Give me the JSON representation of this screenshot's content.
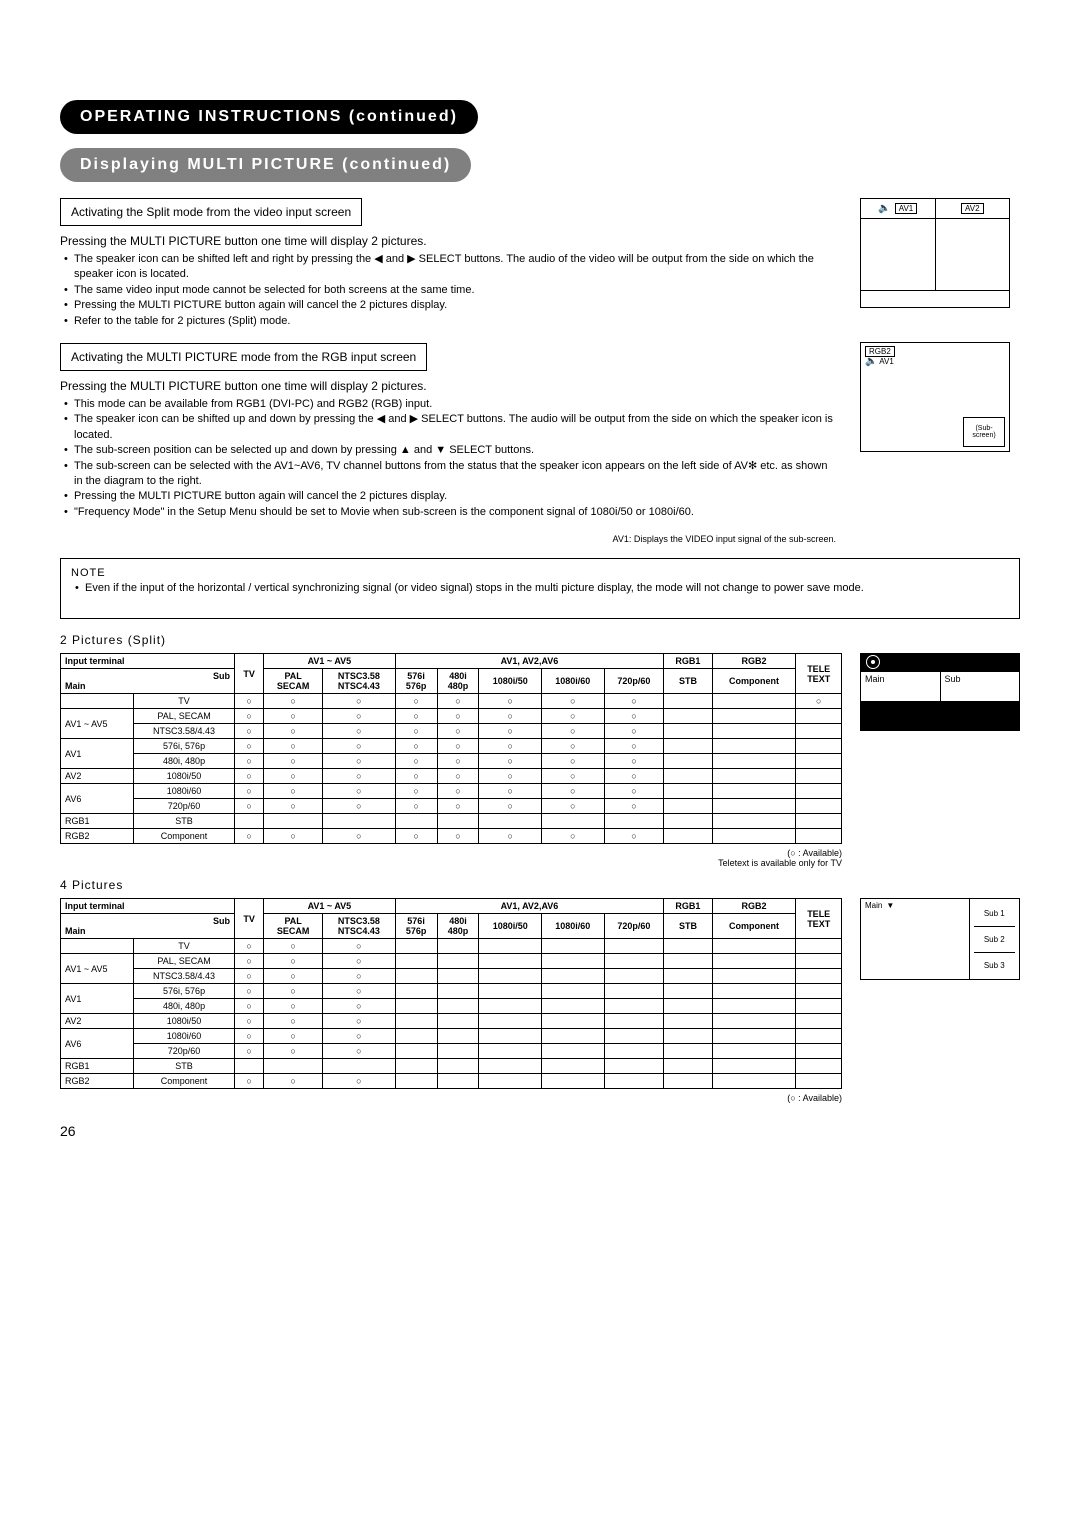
{
  "page_number": "26",
  "header": {
    "pill_black": "OPERATING INSTRUCTIONS (continued)",
    "pill_gray": "Displaying MULTI PICTURE (continued)"
  },
  "section1": {
    "box_title": "Activating the Split mode from the video input screen",
    "intro": "Pressing the MULTI PICTURE button one time will display 2 pictures.",
    "bullets": [
      "The speaker icon can be shifted left and right by pressing the ◀ and ▶ SELECT buttons. The audio of the video will be output from the side on which the speaker icon is located.",
      "The same video input mode cannot be selected for both screens at the same time.",
      "Pressing the MULTI PICTURE button again will cancel the 2 pictures display.",
      "Refer to the table for 2 pictures (Split) mode."
    ],
    "diagram": {
      "left_label": "AV1",
      "right_label": "AV2"
    }
  },
  "section2": {
    "box_title": "Activating the MULTI PICTURE mode from the RGB input screen",
    "intro": "Pressing the MULTI PICTURE button one time will display 2 pictures.",
    "bullets": [
      "This mode can be available from RGB1 (DVI-PC) and RGB2 (RGB) input.",
      "The speaker icon can be shifted up and down by pressing the ◀ and ▶ SELECT buttons. The audio will be output from the side on which the speaker icon is located.",
      "The sub-screen position can be selected up and down by pressing ▲ and ▼ SELECT buttons.",
      "The sub-screen can be selected with the AV1~AV6, TV channel buttons from the status that the speaker icon appears on the left side of AV✻ etc. as shown in the diagram to the right.",
      "Pressing the MULTI PICTURE button again will cancel the 2 pictures display.",
      "\"Frequency Mode\" in the Setup Menu should be set to Movie when sub-screen is the component signal of 1080i/50 or 1080i/60."
    ],
    "diagram": {
      "main_label": "RGB2",
      "av_label": "AV1",
      "sub_label": "(Sub-screen)"
    },
    "caption": "AV1: Displays the VIDEO input signal of the sub-screen."
  },
  "note": {
    "label": "NOTE",
    "text": "Even if the input of the horizontal / vertical synchronizing signal (or video signal) stops in the multi picture display, the mode will not change to power save mode."
  },
  "tables": {
    "title_split": "2 Pictures (Split)",
    "title_4pic": "4 Pictures",
    "legend_split_a": "(○ : Available)",
    "legend_split_b": "Teletext is available only for TV",
    "legend_4pic": "(○ : Available)",
    "input_terminal": "Input terminal",
    "sub_main": "Sub\nMain",
    "group_headers": [
      "AV1 ~ AV5",
      "AV1, AV2,AV6",
      "RGB1",
      "RGB2"
    ],
    "col_headers": [
      "TV",
      "PAL\nSECAM",
      "NTSC3.58\nNTSC4.43",
      "576i\n576p",
      "480i\n480p",
      "1080i/50",
      "1080i/60",
      "720p/60",
      "STB",
      "Component",
      "TELE\nTEXT"
    ],
    "side_labels_split": {
      "header_main": "Main",
      "header_sub": "Sub"
    },
    "rows_split": [
      {
        "g": "",
        "m": "TV",
        "c": [
          "○",
          "○",
          "○",
          "○",
          "○",
          "○",
          "○",
          "○",
          "",
          "",
          "○"
        ]
      },
      {
        "g": "AV1 ~ AV5",
        "m": "PAL, SECAM",
        "c": [
          "○",
          "○",
          "○",
          "○",
          "○",
          "○",
          "○",
          "○",
          "",
          "",
          ""
        ]
      },
      {
        "g": "",
        "m": "NTSC3.58/4.43",
        "c": [
          "○",
          "○",
          "○",
          "○",
          "○",
          "○",
          "○",
          "○",
          "",
          "",
          ""
        ]
      },
      {
        "g": "AV1",
        "m": "576i, 576p",
        "c": [
          "○",
          "○",
          "○",
          "○",
          "○",
          "○",
          "○",
          "○",
          "",
          "",
          ""
        ]
      },
      {
        "g": "",
        "m": "480i, 480p",
        "c": [
          "○",
          "○",
          "○",
          "○",
          "○",
          "○",
          "○",
          "○",
          "",
          "",
          ""
        ]
      },
      {
        "g": "AV2",
        "m": "1080i/50",
        "c": [
          "○",
          "○",
          "○",
          "○",
          "○",
          "○",
          "○",
          "○",
          "",
          "",
          ""
        ]
      },
      {
        "g": "AV6",
        "m": "1080i/60",
        "c": [
          "○",
          "○",
          "○",
          "○",
          "○",
          "○",
          "○",
          "○",
          "",
          "",
          ""
        ]
      },
      {
        "g": "",
        "m": "720p/60",
        "c": [
          "○",
          "○",
          "○",
          "○",
          "○",
          "○",
          "○",
          "○",
          "",
          "",
          ""
        ]
      },
      {
        "g": "RGB1",
        "m": "STB",
        "c": [
          "",
          "",
          "",
          "",
          "",
          "",
          "",
          "",
          "",
          "",
          ""
        ]
      },
      {
        "g": "RGB2",
        "m": "Component",
        "c": [
          "○",
          "○",
          "○",
          "○",
          "○",
          "○",
          "○",
          "○",
          "",
          "",
          ""
        ]
      }
    ],
    "rows_4pic": [
      {
        "g": "",
        "m": "TV",
        "c": [
          "○",
          "○",
          "○",
          "",
          "",
          "",
          "",
          "",
          "",
          "",
          ""
        ]
      },
      {
        "g": "AV1 ~ AV5",
        "m": "PAL, SECAM",
        "c": [
          "○",
          "○",
          "○",
          "",
          "",
          "",
          "",
          "",
          "",
          "",
          ""
        ]
      },
      {
        "g": "",
        "m": "NTSC3.58/4.43",
        "c": [
          "○",
          "○",
          "○",
          "",
          "",
          "",
          "",
          "",
          "",
          "",
          ""
        ]
      },
      {
        "g": "AV1",
        "m": "576i, 576p",
        "c": [
          "○",
          "○",
          "○",
          "",
          "",
          "",
          "",
          "",
          "",
          "",
          ""
        ]
      },
      {
        "g": "",
        "m": "480i, 480p",
        "c": [
          "○",
          "○",
          "○",
          "",
          "",
          "",
          "",
          "",
          "",
          "",
          ""
        ]
      },
      {
        "g": "AV2",
        "m": "1080i/50",
        "c": [
          "○",
          "○",
          "○",
          "",
          "",
          "",
          "",
          "",
          "",
          "",
          ""
        ]
      },
      {
        "g": "AV6",
        "m": "1080i/60",
        "c": [
          "○",
          "○",
          "○",
          "",
          "",
          "",
          "",
          "",
          "",
          "",
          ""
        ]
      },
      {
        "g": "",
        "m": "720p/60",
        "c": [
          "○",
          "○",
          "○",
          "",
          "",
          "",
          "",
          "",
          "",
          "",
          ""
        ]
      },
      {
        "g": "RGB1",
        "m": "STB",
        "c": [
          "",
          "",
          "",
          "",
          "",
          "",
          "",
          "",
          "",
          "",
          ""
        ]
      },
      {
        "g": "RGB2",
        "m": "Component",
        "c": [
          "○",
          "○",
          "○",
          "",
          "",
          "",
          "",
          "",
          "",
          "",
          ""
        ]
      }
    ],
    "diag_split_side": {
      "main": "Main",
      "sub": "Sub"
    },
    "diag_4pic_side": {
      "main": "Main",
      "sub1": "Sub 1",
      "sub2": "Sub 2",
      "sub3": "Sub 3"
    }
  }
}
